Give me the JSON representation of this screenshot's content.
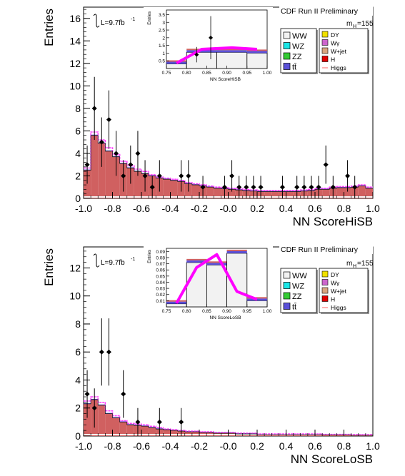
{
  "chart_data": [
    {
      "type": "bar",
      "title": "CDF Run II Preliminary",
      "xlabel": "NN ScoreHiSB",
      "ylabel": "Entries",
      "xlim": [
        -1.0,
        1.0
      ],
      "ylim": [
        0,
        17
      ],
      "yticks": [
        0,
        2,
        4,
        6,
        8,
        10,
        12,
        14,
        16
      ],
      "xticks": [
        -1.0,
        -0.8,
        -0.6,
        -0.4,
        -0.2,
        0.0,
        0.2,
        0.4,
        0.6,
        0.8,
        1.0
      ],
      "xtick_labels": [
        "-1.0",
        "-0.8",
        "-0.6",
        "-0.4",
        "-0.2",
        "-0.0",
        "0.2",
        "0.4",
        "0.6",
        "0.8",
        "1.0"
      ],
      "lumi": "L=9.7fb",
      "lumi_sup": "-1",
      "mass_label": "m",
      "mass_sub": "H",
      "mass_value": "=155",
      "legend_placement": "top-right",
      "legend": [
        {
          "label": "WW",
          "color": "#f2f2f2"
        },
        {
          "label": "WZ",
          "color": "#19e6e6"
        },
        {
          "label": "ZZ",
          "color": "#33cc33"
        },
        {
          "label": "tt̄",
          "color": "#5a50d8"
        },
        {
          "label": "DY",
          "color": "#f0e000"
        },
        {
          "label": "Wγ",
          "color": "#cc66cc"
        },
        {
          "label": "W+jet",
          "color": "#d9a57f"
        },
        {
          "label": "H",
          "color": "#e00000"
        },
        {
          "label": "Higgs",
          "color": "#ff6060"
        }
      ],
      "bins": [
        -1.0,
        -0.95,
        -0.9,
        -0.85,
        -0.8,
        -0.75,
        -0.7,
        -0.65,
        -0.6,
        -0.55,
        -0.5,
        -0.45,
        -0.4,
        -0.35,
        -0.3,
        -0.25,
        -0.2,
        -0.15,
        -0.1,
        -0.05,
        0.0,
        0.05,
        0.1,
        0.15,
        0.2,
        0.25,
        0.3,
        0.35,
        0.4,
        0.45,
        0.5,
        0.55,
        0.6,
        0.65,
        0.7,
        0.75,
        0.8,
        0.85,
        0.9,
        0.95,
        1.0
      ],
      "background_total": [
        2.5,
        5.6,
        4.9,
        4.2,
        3.7,
        3.1,
        2.7,
        2.4,
        2.2,
        2.0,
        1.8,
        1.7,
        1.6,
        1.5,
        1.3,
        1.2,
        1.1,
        1.0,
        0.9,
        0.85,
        0.8,
        0.75,
        0.7,
        0.65,
        0.6,
        0.6,
        0.6,
        0.6,
        0.6,
        0.6,
        0.65,
        0.7,
        0.8,
        0.8,
        0.9,
        0.95,
        0.95,
        1.0,
        1.1,
        0.9
      ],
      "signal_band": [
        2.7,
        5.9,
        5.2,
        4.5,
        3.9,
        3.3,
        2.9,
        2.6,
        2.4,
        2.1,
        1.9,
        1.8,
        1.7,
        1.6,
        1.4,
        1.3,
        1.2,
        1.1,
        1.0,
        0.95,
        0.9,
        0.85,
        0.8,
        0.75,
        0.7,
        0.7,
        0.7,
        0.7,
        0.7,
        0.7,
        0.75,
        0.8,
        0.9,
        0.9,
        1.0,
        1.05,
        1.05,
        1.1,
        1.2,
        1.0
      ],
      "data_points": [
        {
          "x": -0.975,
          "y": 3,
          "err": 1.7
        },
        {
          "x": -0.925,
          "y": 8,
          "err": 2.8
        },
        {
          "x": -0.875,
          "y": 5,
          "err": 2.2
        },
        {
          "x": -0.825,
          "y": 7,
          "err": 2.6
        },
        {
          "x": -0.775,
          "y": 4,
          "err": 2.0
        },
        {
          "x": -0.725,
          "y": 2,
          "err": 1.4
        },
        {
          "x": -0.675,
          "y": 3,
          "err": 1.7
        },
        {
          "x": -0.625,
          "y": 4,
          "err": 2.0
        },
        {
          "x": -0.575,
          "y": 2,
          "err": 1.4
        },
        {
          "x": -0.525,
          "y": 1,
          "err": 1.0
        },
        {
          "x": -0.475,
          "y": 2,
          "err": 1.4
        },
        {
          "x": -0.325,
          "y": 2,
          "err": 1.4
        },
        {
          "x": -0.275,
          "y": 2,
          "err": 1.4
        },
        {
          "x": -0.175,
          "y": 1,
          "err": 1.0
        },
        {
          "x": -0.025,
          "y": 1,
          "err": 1.0
        },
        {
          "x": 0.025,
          "y": 2,
          "err": 1.4
        },
        {
          "x": 0.075,
          "y": 1,
          "err": 1.0
        },
        {
          "x": 0.125,
          "y": 1,
          "err": 1.0
        },
        {
          "x": 0.175,
          "y": 1,
          "err": 1.0
        },
        {
          "x": 0.225,
          "y": 1,
          "err": 1.0
        },
        {
          "x": 0.375,
          "y": 1,
          "err": 1.0
        },
        {
          "x": 0.475,
          "y": 1,
          "err": 1.0
        },
        {
          "x": 0.525,
          "y": 1,
          "err": 1.0
        },
        {
          "x": 0.575,
          "y": 1,
          "err": 1.0
        },
        {
          "x": 0.625,
          "y": 1,
          "err": 1.0
        },
        {
          "x": 0.675,
          "y": 3,
          "err": 1.7
        },
        {
          "x": 0.725,
          "y": 1,
          "err": 1.0
        },
        {
          "x": 0.825,
          "y": 2,
          "err": 1.4
        },
        {
          "x": 0.875,
          "y": 1,
          "err": 1.0
        }
      ],
      "inset": {
        "xlabel": "NN ScoreHiSB",
        "ylabel": "Entries",
        "xlim": [
          0.75,
          1.0
        ],
        "ylim": [
          0,
          3.8
        ],
        "yticks": [
          0.5,
          1,
          1.5,
          2,
          2.5,
          3,
          3.5
        ],
        "ytick_labels": [
          "0.5",
          "1",
          "1.5",
          "2",
          "2.5",
          "3",
          "3.5"
        ],
        "xticks": [
          0.75,
          0.8,
          0.85,
          0.9,
          0.95,
          1.0
        ],
        "xtick_labels": [
          "0.75",
          "0.80",
          "0.85",
          "0.90",
          "0.95",
          "1.00"
        ],
        "bins": [
          0.75,
          0.8,
          0.875,
          0.95,
          1.0
        ],
        "background_total": [
          0.3,
          1.05,
          1.05,
          1.0
        ],
        "signal_band": [
          0.35,
          1.25,
          1.35,
          1.25
        ],
        "data_points": [
          {
            "x": 0.825,
            "y": 0.9,
            "err": 0.5
          },
          {
            "x": 0.86,
            "y": 2.0,
            "err": 1.4
          }
        ]
      }
    },
    {
      "type": "bar",
      "title": "CDF Run II Preliminary",
      "xlabel": "NN ScoreLoSB",
      "ylabel": "Entries",
      "xlim": [
        -1.0,
        1.0
      ],
      "ylim": [
        0,
        13.5
      ],
      "yticks": [
        0,
        2,
        4,
        6,
        8,
        10,
        12
      ],
      "xticks": [
        -1.0,
        -0.8,
        -0.6,
        -0.4,
        -0.2,
        0.0,
        0.2,
        0.4,
        0.6,
        0.8,
        1.0
      ],
      "xtick_labels": [
        "-1.0",
        "-0.8",
        "-0.6",
        "-0.4",
        "-0.2",
        "-0.0",
        "0.2",
        "0.4",
        "0.6",
        "0.8",
        "1.0"
      ],
      "lumi": "L=9.7fb",
      "lumi_sup": "-1",
      "mass_label": "m",
      "mass_sub": "H",
      "mass_value": "=155",
      "legend_placement": "top-right",
      "legend": [
        {
          "label": "WW",
          "color": "#f2f2f2"
        },
        {
          "label": "WZ",
          "color": "#19e6e6"
        },
        {
          "label": "ZZ",
          "color": "#33cc33"
        },
        {
          "label": "tt̄",
          "color": "#5a50d8"
        },
        {
          "label": "DY",
          "color": "#f0e000"
        },
        {
          "label": "Wγ",
          "color": "#cc66cc"
        },
        {
          "label": "W+jet",
          "color": "#d9a57f"
        },
        {
          "label": "H",
          "color": "#e00000"
        },
        {
          "label": "Higgs",
          "color": "#ff6060"
        }
      ],
      "bins": [
        -1.0,
        -0.95,
        -0.9,
        -0.85,
        -0.8,
        -0.75,
        -0.7,
        -0.65,
        -0.6,
        -0.55,
        -0.5,
        -0.45,
        -0.4,
        -0.35,
        -0.3,
        -0.25,
        -0.2,
        -0.15,
        -0.1,
        -0.05,
        0.0,
        0.05,
        0.1,
        0.15,
        0.2,
        0.25,
        0.3,
        0.35,
        0.4,
        0.45,
        0.5,
        0.55,
        0.6,
        0.65,
        0.7,
        0.75,
        0.8,
        0.85,
        0.9,
        0.95,
        1.0
      ],
      "background_total": [
        2.3,
        2.6,
        2.2,
        1.6,
        1.3,
        1.0,
        0.8,
        0.75,
        0.7,
        0.6,
        0.5,
        0.45,
        0.4,
        0.35,
        0.3,
        0.3,
        0.25,
        0.25,
        0.2,
        0.2,
        0.2,
        0.15,
        0.15,
        0.15,
        0.1,
        0.1,
        0.1,
        0.1,
        0.1,
        0.1,
        0.1,
        0.1,
        0.1,
        0.08,
        0.08,
        0.08,
        0.08,
        0.05,
        0.05,
        0.05
      ],
      "signal_band": [
        2.5,
        2.8,
        2.4,
        1.8,
        1.45,
        1.1,
        0.9,
        0.85,
        0.8,
        0.7,
        0.6,
        0.5,
        0.45,
        0.4,
        0.35,
        0.35,
        0.3,
        0.3,
        0.25,
        0.25,
        0.25,
        0.2,
        0.2,
        0.2,
        0.15,
        0.15,
        0.15,
        0.15,
        0.15,
        0.15,
        0.15,
        0.15,
        0.15,
        0.12,
        0.12,
        0.12,
        0.12,
        0.1,
        0.1,
        0.1
      ],
      "data_points": [
        {
          "x": -0.975,
          "y": 3,
          "err": 1.7
        },
        {
          "x": -0.925,
          "y": 2,
          "err": 1.4
        },
        {
          "x": -0.875,
          "y": 6,
          "err": 2.4
        },
        {
          "x": -0.825,
          "y": 6,
          "err": 2.4
        },
        {
          "x": -0.725,
          "y": 3,
          "err": 1.7
        },
        {
          "x": -0.625,
          "y": 1,
          "err": 1.0
        },
        {
          "x": -0.475,
          "y": 1,
          "err": 1.0
        },
        {
          "x": -0.325,
          "y": 1,
          "err": 1.0
        }
      ],
      "inset": {
        "xlabel": "NN ScoreLoSB",
        "ylabel": "Entries",
        "xlim": [
          0.75,
          1.0
        ],
        "ylim": [
          0,
          0.095
        ],
        "yticks": [
          0.01,
          0.02,
          0.03,
          0.04,
          0.05,
          0.06,
          0.07,
          0.08,
          0.09
        ],
        "ytick_labels": [
          "0.01",
          "0.02",
          "0.03",
          "0.04",
          "0.05",
          "0.06",
          "0.07",
          "0.08",
          "0.09"
        ],
        "xticks": [
          0.75,
          0.8,
          0.85,
          0.9,
          0.95,
          1.0
        ],
        "xtick_labels": [
          "0.75",
          "0.80",
          "0.85",
          "0.90",
          "0.95",
          "1.00"
        ],
        "bins": [
          0.75,
          0.8,
          0.85,
          0.9,
          0.95,
          1.0
        ],
        "background_total": [
          0.005,
          0.072,
          0.068,
          0.087,
          0.01
        ],
        "signal_band": [
          0.006,
          0.064,
          0.085,
          0.025,
          0.012
        ],
        "data_points": []
      }
    }
  ]
}
